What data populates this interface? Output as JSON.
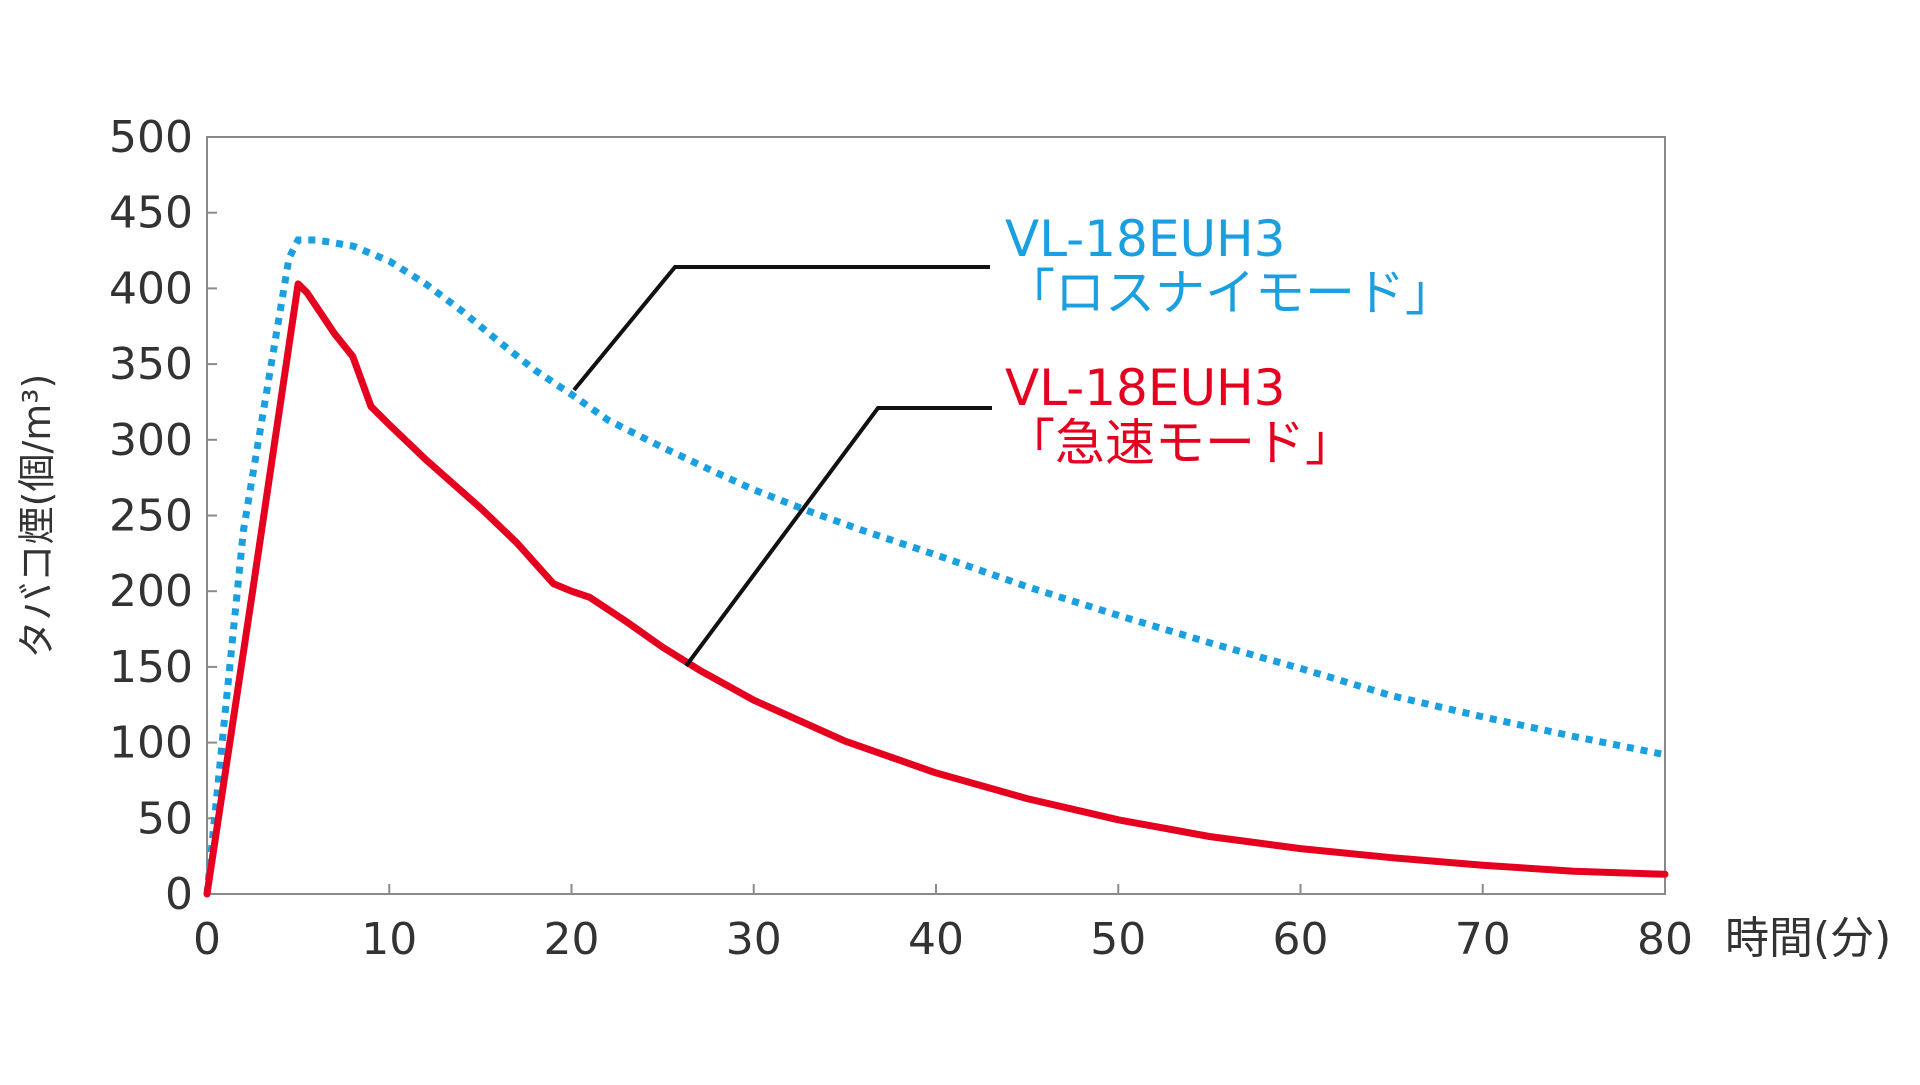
{
  "chart_data": {
    "type": "line",
    "xlabel": "時間(分)",
    "ylabel": "タバコ煙(個/m³)",
    "xlim": [
      0,
      80
    ],
    "ylim": [
      0,
      500
    ],
    "x_ticks": [
      0,
      10,
      20,
      30,
      40,
      50,
      60,
      70,
      80
    ],
    "y_ticks": [
      0,
      50,
      100,
      150,
      200,
      250,
      300,
      350,
      400,
      450,
      500
    ],
    "grid": false,
    "series": [
      {
        "id": "lossnay",
        "name_line1": "VL-18EUH3",
        "name_line2": "「ロスナイモード」",
        "color": "#1a9fe0",
        "style": "dotted",
        "points": [
          [
            0,
            0
          ],
          [
            2,
            240
          ],
          [
            4.5,
            420
          ],
          [
            5,
            432
          ],
          [
            6,
            432
          ],
          [
            8,
            428
          ],
          [
            10,
            418
          ],
          [
            12,
            403
          ],
          [
            14,
            385
          ],
          [
            16,
            365
          ],
          [
            18,
            346
          ],
          [
            20,
            330
          ],
          [
            22,
            313
          ],
          [
            25,
            295
          ],
          [
            28,
            278
          ],
          [
            30,
            267
          ],
          [
            33,
            253
          ],
          [
            36,
            240
          ],
          [
            40,
            224
          ],
          [
            45,
            203
          ],
          [
            50,
            184
          ],
          [
            55,
            166
          ],
          [
            60,
            149
          ],
          [
            65,
            131
          ],
          [
            70,
            117
          ],
          [
            75,
            104
          ],
          [
            80,
            92
          ]
        ]
      },
      {
        "id": "rapid",
        "name_line1": "VL-18EUH3",
        "name_line2": "「急速モード」",
        "color": "#e6001f",
        "style": "solid",
        "points": [
          [
            0,
            0
          ],
          [
            2.5,
            200
          ],
          [
            5,
            403
          ],
          [
            5.5,
            397
          ],
          [
            7,
            370
          ],
          [
            8,
            355
          ],
          [
            9,
            322
          ],
          [
            10,
            310
          ],
          [
            12,
            287
          ],
          [
            15,
            255
          ],
          [
            17,
            232
          ],
          [
            19,
            205
          ],
          [
            20,
            200
          ],
          [
            21,
            196
          ],
          [
            23,
            180
          ],
          [
            25,
            163
          ],
          [
            27,
            148
          ],
          [
            30,
            128
          ],
          [
            35,
            101
          ],
          [
            40,
            80
          ],
          [
            45,
            63
          ],
          [
            50,
            49
          ],
          [
            55,
            38
          ],
          [
            60,
            30
          ],
          [
            65,
            24
          ],
          [
            70,
            19
          ],
          [
            75,
            15
          ],
          [
            80,
            13
          ]
        ]
      }
    ]
  }
}
